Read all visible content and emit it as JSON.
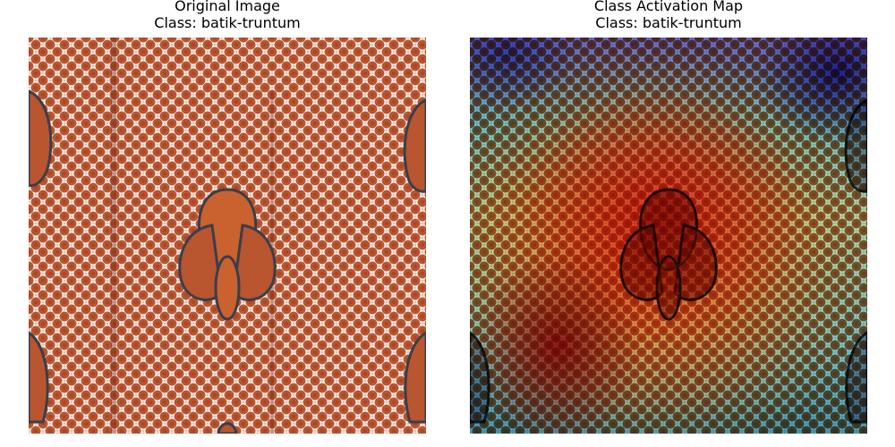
{
  "panels": [
    {
      "title_line1": "Original Image",
      "title_line2": "Class: batik-truntum"
    },
    {
      "title_line1": "Class Activation Map",
      "title_line2": "Class: batik-truntum"
    }
  ],
  "colors": {
    "batik_brown": "#b9552f",
    "batik_background": "#f3ece6",
    "heatmap_hot": "#dc1e14",
    "heatmap_cold": "#5a6cf5"
  }
}
